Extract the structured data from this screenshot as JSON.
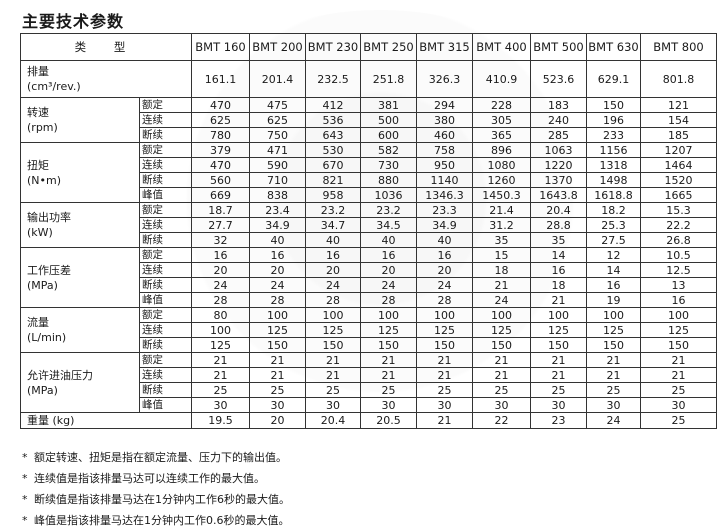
{
  "title": "主要技术参数",
  "table": {
    "type_header": "类 型",
    "models": [
      "BMT 160",
      "BMT 200",
      "BMT 230",
      "BMT 250",
      "BMT 315",
      "BMT 400",
      "BMT 500",
      "BMT 630",
      "BMT 800"
    ],
    "displacement": {
      "label": "排量",
      "unit": "(cm³/rev.)",
      "values": [
        "161.1",
        "201.4",
        "232.5",
        "251.8",
        "326.3",
        "410.9",
        "523.6",
        "629.1",
        "801.8"
      ]
    },
    "groups": [
      {
        "label": "转速",
        "unit": "(rpm)",
        "rows": [
          {
            "sub": "额定",
            "values": [
              "470",
              "475",
              "412",
              "381",
              "294",
              "228",
              "183",
              "150",
              "121"
            ]
          },
          {
            "sub": "连续",
            "values": [
              "625",
              "625",
              "536",
              "500",
              "380",
              "305",
              "240",
              "196",
              "154"
            ]
          },
          {
            "sub": "断续",
            "values": [
              "780",
              "750",
              "643",
              "600",
              "460",
              "365",
              "285",
              "233",
              "185"
            ]
          }
        ]
      },
      {
        "label": "扭矩",
        "unit": "(N•m)",
        "rows": [
          {
            "sub": "额定",
            "values": [
              "379",
              "471",
              "530",
              "582",
              "758",
              "896",
              "1063",
              "1156",
              "1207"
            ]
          },
          {
            "sub": "连续",
            "values": [
              "470",
              "590",
              "670",
              "730",
              "950",
              "1080",
              "1220",
              "1318",
              "1464"
            ]
          },
          {
            "sub": "断续",
            "values": [
              "560",
              "710",
              "821",
              "880",
              "1140",
              "1260",
              "1370",
              "1498",
              "1520"
            ]
          },
          {
            "sub": "峰值",
            "values": [
              "669",
              "838",
              "958",
              "1036",
              "1346.3",
              "1450.3",
              "1643.8",
              "1618.8",
              "1665"
            ]
          }
        ]
      },
      {
        "label": "输出功率",
        "unit": "(kW)",
        "rows": [
          {
            "sub": "额定",
            "values": [
              "18.7",
              "23.4",
              "23.2",
              "23.2",
              "23.3",
              "21.4",
              "20.4",
              "18.2",
              "15.3"
            ]
          },
          {
            "sub": "连续",
            "values": [
              "27.7",
              "34.9",
              "34.7",
              "34.5",
              "34.9",
              "31.2",
              "28.8",
              "25.3",
              "22.2"
            ]
          },
          {
            "sub": "断续",
            "values": [
              "32",
              "40",
              "40",
              "40",
              "40",
              "35",
              "35",
              "27.5",
              "26.8"
            ]
          }
        ]
      },
      {
        "label": "工作压差",
        "unit": "(MPa)",
        "rows": [
          {
            "sub": "额定",
            "values": [
              "16",
              "16",
              "16",
              "16",
              "16",
              "15",
              "14",
              "12",
              "10.5"
            ]
          },
          {
            "sub": "连续",
            "values": [
              "20",
              "20",
              "20",
              "20",
              "20",
              "18",
              "16",
              "14",
              "12.5"
            ]
          },
          {
            "sub": "断续",
            "values": [
              "24",
              "24",
              "24",
              "24",
              "24",
              "21",
              "18",
              "16",
              "13"
            ]
          },
          {
            "sub": "峰值",
            "values": [
              "28",
              "28",
              "28",
              "28",
              "28",
              "24",
              "21",
              "19",
              "16"
            ]
          }
        ]
      },
      {
        "label": "流量",
        "unit": "(L/min)",
        "rows": [
          {
            "sub": "额定",
            "values": [
              "80",
              "100",
              "100",
              "100",
              "100",
              "100",
              "100",
              "100",
              "100"
            ]
          },
          {
            "sub": "连续",
            "values": [
              "100",
              "125",
              "125",
              "125",
              "125",
              "125",
              "125",
              "125",
              "125"
            ]
          },
          {
            "sub": "断续",
            "values": [
              "125",
              "150",
              "150",
              "150",
              "150",
              "150",
              "150",
              "150",
              "150"
            ]
          }
        ]
      },
      {
        "label": "允许进油压力",
        "unit": "(MPa)",
        "rows": [
          {
            "sub": "额定",
            "values": [
              "21",
              "21",
              "21",
              "21",
              "21",
              "21",
              "21",
              "21",
              "21"
            ]
          },
          {
            "sub": "连续",
            "values": [
              "21",
              "21",
              "21",
              "21",
              "21",
              "21",
              "21",
              "21",
              "21"
            ]
          },
          {
            "sub": "断续",
            "values": [
              "25",
              "25",
              "25",
              "25",
              "25",
              "25",
              "25",
              "25",
              "25"
            ]
          },
          {
            "sub": "峰值",
            "values": [
              "30",
              "30",
              "30",
              "30",
              "30",
              "30",
              "30",
              "30",
              "30"
            ]
          }
        ]
      }
    ],
    "weight": {
      "label": "重量 (kg)",
      "values": [
        "19.5",
        "20",
        "20.4",
        "20.5",
        "21",
        "22",
        "23",
        "24",
        "25"
      ]
    }
  },
  "notes": [
    "额定转速、扭矩是指在额定流量、压力下的输出值。",
    "连续值是指该排量马达可以连续工作的最大值。",
    "断续值是指该排量马达在1分钟内工作6秒的最大值。",
    "峰值是指该排量马达在1分钟内工作0.6秒的最大值。"
  ],
  "note_bullet": "*"
}
